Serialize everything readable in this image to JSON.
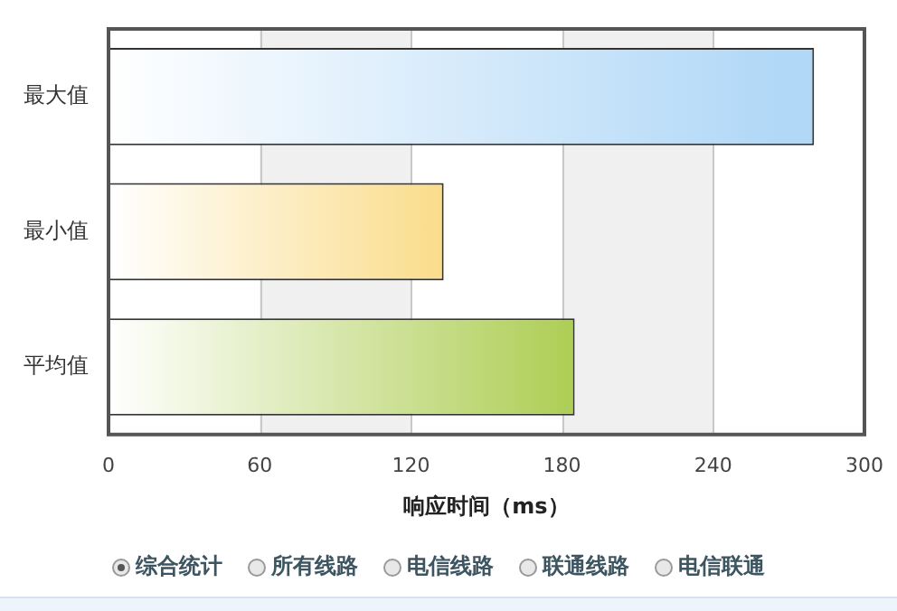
{
  "chart_data": {
    "type": "bar",
    "orientation": "horizontal",
    "categories": [
      "最大值",
      "最小值",
      "平均值"
    ],
    "values": [
      280,
      133,
      185
    ],
    "colors": [
      "#b1d8f7",
      "#f5b916",
      "#8ab80a"
    ],
    "xlabel": "响应时间（ms）",
    "xlim": [
      0,
      300
    ],
    "xticks": [
      0,
      60,
      120,
      180,
      240,
      300
    ],
    "grid": "x",
    "legend": false,
    "bands": [
      {
        "axis": "x",
        "from": 60,
        "to": 120,
        "color": "#f0f0f0"
      },
      {
        "axis": "x",
        "from": 180,
        "to": 240,
        "color": "#f0f0f0"
      }
    ],
    "annotations": [
      "综合统计",
      "所有线路",
      "电信线路",
      "联通线路",
      "电信联通"
    ]
  }
}
